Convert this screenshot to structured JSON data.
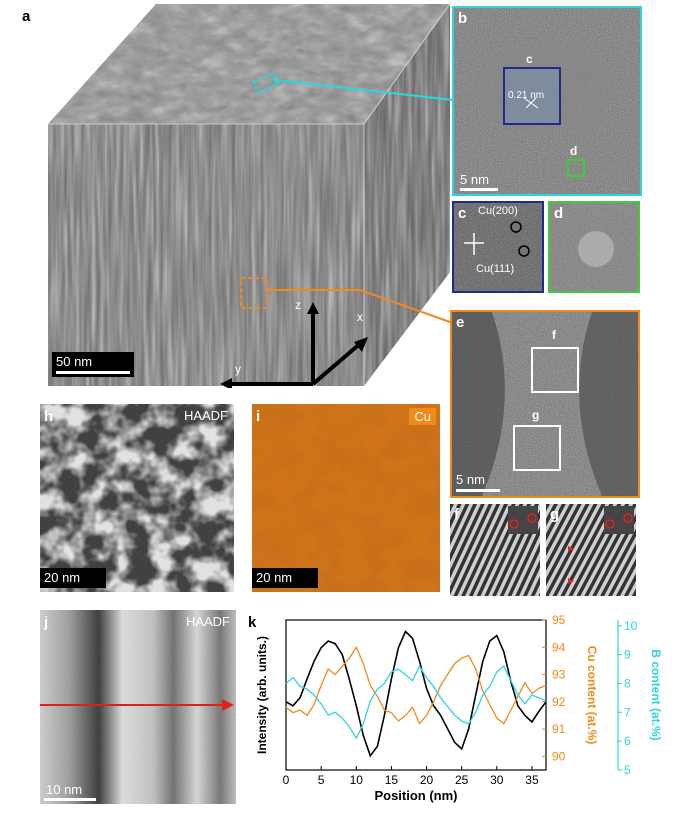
{
  "figure": {
    "panel_a": {
      "letter": "a",
      "scalebar": "50 nm",
      "axes": {
        "z": "z",
        "x": "x",
        "y": "y"
      }
    },
    "panel_b": {
      "letter": "b",
      "lattice_label": "0.21 nm",
      "inset_c": "c",
      "inset_d": "d",
      "scalebar": "5 nm"
    },
    "panel_c": {
      "letter": "c",
      "spot1": "Cu(200)",
      "spot2": "Cu(111)"
    },
    "panel_d": {
      "letter": "d"
    },
    "panel_e": {
      "letter": "e",
      "box_f": "f",
      "box_g": "g",
      "scalebar": "5 nm"
    },
    "panel_f": {
      "letter": "f"
    },
    "panel_g": {
      "letter": "g"
    },
    "panel_h": {
      "letter": "h",
      "tag": "HAADF",
      "scalebar": "20 nm"
    },
    "panel_i": {
      "letter": "i",
      "tag": "Cu",
      "scalebar": "20 nm"
    },
    "panel_j": {
      "letter": "j",
      "tag": "HAADF",
      "scalebar": "10 nm"
    },
    "panel_k": {
      "letter": "k"
    }
  },
  "colors": {
    "cyan": "#2bd6e0",
    "orange": "#f08a1a",
    "navy": "#1f2a8c",
    "green": "#3ccd3c",
    "red": "#e02020"
  },
  "chart_data": {
    "type": "line",
    "xlabel": "Position (nm)",
    "ylabel_left": "Intensity (arb. units.)",
    "ylabel_right1": "Cu content (at.%)",
    "ylabel_right2": "B content (at.%)",
    "xlim": [
      0,
      37
    ],
    "xticks": [
      "0",
      "5",
      "10",
      "15",
      "20",
      "25",
      "30",
      "35"
    ],
    "cu_ylim": [
      89.5,
      95
    ],
    "cu_ticks": [
      "90",
      "91",
      "92",
      "93",
      "94",
      "95"
    ],
    "b_ylim": [
      5,
      10.2
    ],
    "b_ticks": [
      "5",
      "6",
      "7",
      "8",
      "9",
      "10"
    ],
    "series": [
      {
        "name": "Intensity",
        "color": "#000000",
        "x": [
          0,
          1,
          2,
          3,
          4,
          5,
          6,
          7,
          8,
          9,
          10,
          11,
          12,
          13,
          14,
          15,
          16,
          17,
          18,
          19,
          20,
          21,
          22,
          23,
          24,
          25,
          26,
          27,
          28,
          29,
          30,
          31,
          32,
          33,
          34,
          35,
          36,
          37
        ],
        "y": [
          0.45,
          0.42,
          0.48,
          0.62,
          0.75,
          0.85,
          0.9,
          0.88,
          0.8,
          0.62,
          0.42,
          0.2,
          0.05,
          0.12,
          0.35,
          0.62,
          0.85,
          0.97,
          0.92,
          0.75,
          0.55,
          0.42,
          0.35,
          0.25,
          0.15,
          0.1,
          0.25,
          0.5,
          0.75,
          0.9,
          0.94,
          0.82,
          0.6,
          0.42,
          0.35,
          0.3,
          0.38,
          0.45
        ]
      },
      {
        "name": "Cu content",
        "color": "#f08a1a",
        "x": [
          0,
          1,
          2,
          3,
          4,
          5,
          6,
          7,
          8,
          9,
          10,
          11,
          12,
          13,
          14,
          15,
          16,
          17,
          18,
          19,
          20,
          21,
          22,
          23,
          24,
          25,
          26,
          27,
          28,
          29,
          30,
          31,
          32,
          33,
          34,
          35,
          36,
          37
        ],
        "y": [
          91.8,
          91.6,
          91.7,
          91.5,
          91.9,
          92.6,
          93.2,
          93.0,
          93.3,
          93.6,
          94.0,
          93.4,
          92.6,
          92.2,
          91.7,
          91.6,
          91.3,
          91.5,
          91.8,
          91.2,
          91.5,
          92.0,
          92.6,
          93.0,
          93.4,
          93.6,
          93.7,
          93.2,
          92.4,
          91.9,
          91.4,
          91.2,
          91.7,
          92.2,
          92.7,
          92.3,
          92.5,
          92.6
        ]
      },
      {
        "name": "B content",
        "color": "#2bd6e0",
        "x": [
          0,
          1,
          2,
          3,
          4,
          5,
          6,
          7,
          8,
          9,
          10,
          11,
          12,
          13,
          14,
          15,
          16,
          17,
          18,
          19,
          20,
          21,
          22,
          23,
          24,
          25,
          26,
          27,
          28,
          29,
          30,
          31,
          32,
          33,
          34,
          35,
          36,
          37
        ],
        "y": [
          8.0,
          8.2,
          7.9,
          7.8,
          7.6,
          7.3,
          6.9,
          7.0,
          6.8,
          6.5,
          6.1,
          6.6,
          7.4,
          7.8,
          8.0,
          8.4,
          8.5,
          8.3,
          8.1,
          8.6,
          8.2,
          7.9,
          7.5,
          7.2,
          6.9,
          6.7,
          6.6,
          7.0,
          7.6,
          7.9,
          8.4,
          8.6,
          8.1,
          7.6,
          7.3,
          7.6,
          7.5,
          7.4
        ]
      }
    ]
  }
}
